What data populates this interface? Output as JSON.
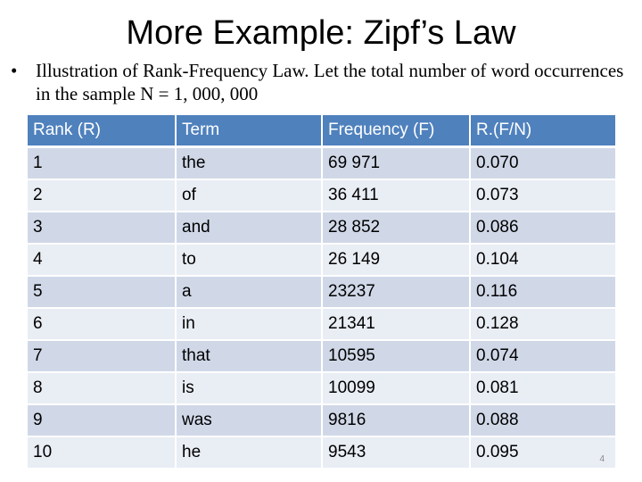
{
  "slide": {
    "title": "More Example: Zipf’s Law",
    "bullet_marker": "•",
    "bullet_text": "Illustration of Rank-Frequency Law. Let the total number of word occurrences in the sample N = 1, 000, 000",
    "page_number": "4"
  },
  "table": {
    "headers": [
      "Rank (R)",
      "Term",
      "Frequency (F)",
      "R.(F/N)"
    ],
    "rows": [
      [
        "1",
        "the",
        "69 971",
        "0.070"
      ],
      [
        "2",
        "of",
        "36 411",
        "0.073"
      ],
      [
        "3",
        "and",
        "28 852",
        "0.086"
      ],
      [
        "4",
        "to",
        "26 149",
        "0.104"
      ],
      [
        "5",
        "a",
        "23237",
        "0.116"
      ],
      [
        "6",
        "in",
        "21341",
        "0.128"
      ],
      [
        "7",
        "that",
        "10595",
        "0.074"
      ],
      [
        "8",
        "is",
        "10099",
        "0.081"
      ],
      [
        "9",
        "was",
        "9816",
        "0.088"
      ],
      [
        "10",
        "he",
        "9543",
        "0.095"
      ]
    ]
  },
  "colors": {
    "header_bg": "#4f81bd",
    "row_odd_bg": "#d0d8e8",
    "row_even_bg": "#e9edf4"
  }
}
